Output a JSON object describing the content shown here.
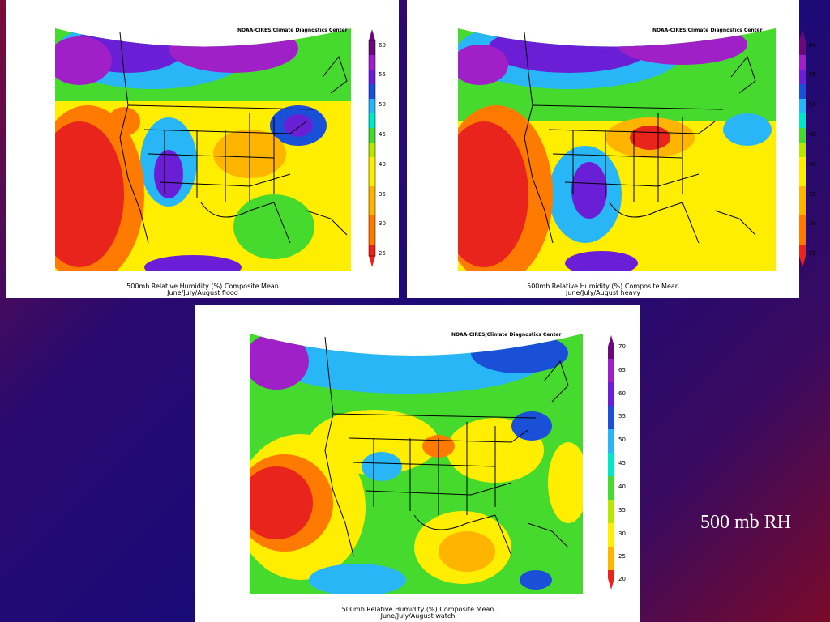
{
  "slide": {
    "title": "500 mb RH",
    "credit": "NOAA-CIRES/Climate Diagnostics Center"
  },
  "panels": [
    {
      "id": "flood",
      "caption_line1": "500mb Relative Humidity (%) Composite Mean",
      "caption_line2": "June/July/August flood",
      "scale": [
        "60",
        "55",
        "50",
        "45",
        "40",
        "35",
        "30",
        "25"
      ]
    },
    {
      "id": "heavy",
      "caption_line1": "500mb Relative Humidity (%) Composite Mean",
      "caption_line2": "June/July/August heavy",
      "scale": [
        "60",
        "55",
        "50",
        "45",
        "40",
        "35",
        "30",
        "25"
      ]
    },
    {
      "id": "watch",
      "caption_line1": "500mb Relative Humidity (%) Composite Mean",
      "caption_line2": "June/July/August watch",
      "scale": [
        "70",
        "65",
        "60",
        "55",
        "50",
        "45",
        "40",
        "35",
        "30",
        "25",
        "20"
      ]
    }
  ],
  "colors": {
    "scale_low_to_high": [
      "#e8241c",
      "#ff7a00",
      "#ffb400",
      "#ffee00",
      "#b8e600",
      "#46d92e",
      "#00e8c8",
      "#29b6f6",
      "#1a4fd8",
      "#6a1fd6",
      "#a020c8",
      "#6a0a7a"
    ]
  }
}
